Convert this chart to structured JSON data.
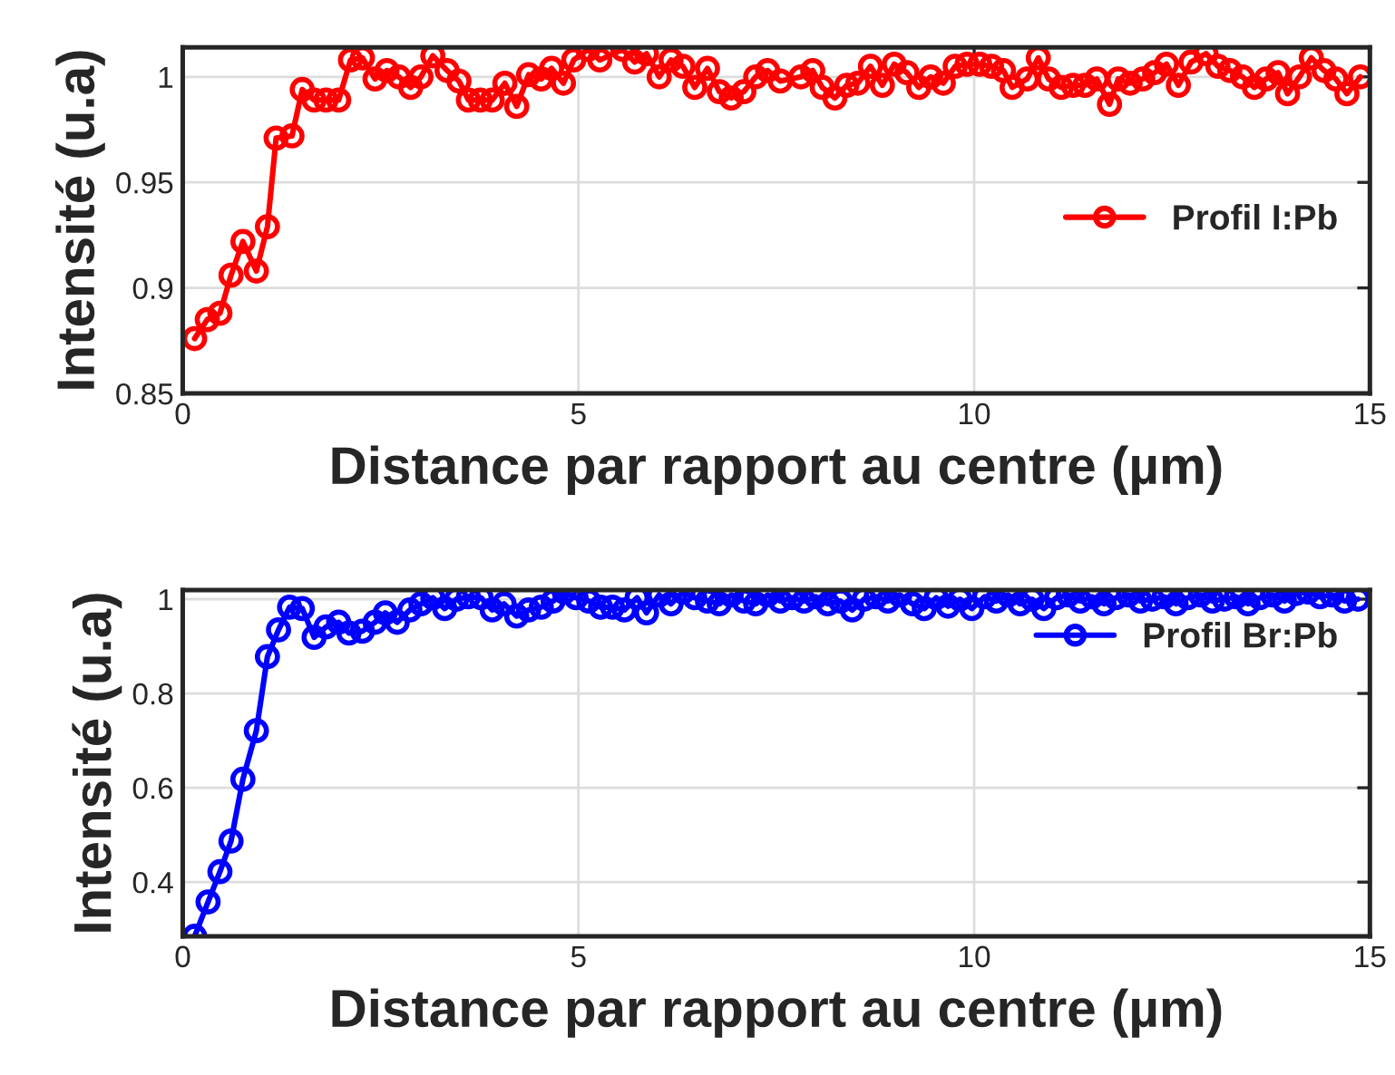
{
  "chart_data": [
    {
      "type": "line",
      "xlabel": "Distance par rapport au centre (µm)",
      "ylabel": "Intensité (u.a)",
      "xlim": [
        0,
        15
      ],
      "xticks": [
        0,
        5,
        10,
        15
      ],
      "ylim": [
        0.85,
        1.014
      ],
      "yticks": [
        0.85,
        0.9,
        0.95,
        1
      ],
      "grid": true,
      "legend": "right",
      "marker": "circle",
      "line_style": "solid",
      "series": [
        {
          "name": "Profil I:Pb",
          "color": "#ff0000",
          "x": [
            0.15,
            0.31,
            0.47,
            0.61,
            0.76,
            0.93,
            1.07,
            1.18,
            1.38,
            1.51,
            1.66,
            1.81,
            1.97,
            2.12,
            2.27,
            2.43,
            2.58,
            2.73,
            2.88,
            3.01,
            3.16,
            3.34,
            3.49,
            3.61,
            3.76,
            3.91,
            4.07,
            4.22,
            4.37,
            4.53,
            4.66,
            4.81,
            4.94,
            5.12,
            5.27,
            5.56,
            5.71,
            5.86,
            6.02,
            6.17,
            6.32,
            6.47,
            6.63,
            6.78,
            6.93,
            7.09,
            7.24,
            7.39,
            7.55,
            7.81,
            7.96,
            8.08,
            8.24,
            8.39,
            8.53,
            8.69,
            8.84,
            8.99,
            9.15,
            9.3,
            9.45,
            9.61,
            9.76,
            9.91,
            10.07,
            10.22,
            10.37,
            10.48,
            10.67,
            10.81,
            10.94,
            11.1,
            11.25,
            11.4,
            11.55,
            11.71,
            11.82,
            11.97,
            12.13,
            12.28,
            12.43,
            12.58,
            12.74,
            12.93,
            13.08,
            13.23,
            13.39,
            13.54,
            13.69,
            13.84,
            13.96,
            14.11,
            14.26,
            14.42,
            14.57,
            14.71,
            14.88
          ],
          "values": [
            0.876,
            0.885,
            0.888,
            0.906,
            0.922,
            0.908,
            0.929,
            0.971,
            0.972,
            0.994,
            0.989,
            0.989,
            0.989,
            1.008,
            1.009,
            0.999,
            1.003,
            1.0,
            0.995,
            1.0,
            1.01,
            1.003,
            0.998,
            0.989,
            0.989,
            0.989,
            0.997,
            0.986,
            1.001,
            0.999,
            1.004,
            0.997,
            1.008,
            1.013,
            1.008,
            1.013,
            1.007,
            1.011,
            1.0,
            1.008,
            1.005,
            0.995,
            1.004,
            0.993,
            0.99,
            0.993,
            1.0,
            1.003,
            0.998,
            1.0,
            1.003,
            0.995,
            0.99,
            0.996,
            0.997,
            1.005,
            0.996,
            1.006,
            1.002,
            0.995,
            1.0,
            0.997,
            1.005,
            1.006,
            1.006,
            1.005,
            1.003,
            0.995,
            0.999,
            1.009,
            0.999,
            0.995,
            0.996,
            0.996,
            0.999,
            0.987,
            0.999,
            0.997,
            0.999,
            1.002,
            1.006,
            0.996,
            1.007,
            1.011,
            1.005,
            1.003,
            1.0,
            0.995,
            0.999,
            1.002,
            0.992,
            1.0,
            1.009,
            1.003,
            0.999,
            0.992,
            1.0
          ]
        }
      ]
    },
    {
      "type": "line",
      "xlabel": "Distance par rapport au centre (µm)",
      "ylabel": "Intensité (u.a)",
      "xlim": [
        0,
        15
      ],
      "xticks": [
        0,
        5,
        10,
        15
      ],
      "ylim": [
        0.285,
        1.019
      ],
      "yticks": [
        0.4,
        0.6,
        0.8,
        1
      ],
      "grid": true,
      "legend": "top right",
      "marker": "circle",
      "line_style": "solid",
      "series": [
        {
          "name": "Profil Br:Pb",
          "color": "#0000ff",
          "x": [
            0.15,
            0.32,
            0.47,
            0.61,
            0.76,
            0.93,
            1.07,
            1.21,
            1.35,
            1.51,
            1.66,
            1.81,
            1.97,
            2.1,
            2.27,
            2.43,
            2.56,
            2.71,
            2.87,
            3.01,
            3.16,
            3.31,
            3.46,
            3.61,
            3.77,
            3.91,
            4.06,
            4.22,
            4.37,
            4.53,
            4.68,
            4.82,
            4.97,
            5.13,
            5.28,
            5.43,
            5.58,
            5.74,
            5.86,
            6.02,
            6.17,
            6.32,
            6.47,
            6.63,
            6.78,
            6.93,
            7.09,
            7.24,
            7.39,
            7.55,
            7.7,
            7.85,
            8.0,
            8.15,
            8.31,
            8.46,
            8.61,
            8.76,
            8.91,
            9.06,
            9.22,
            9.37,
            9.52,
            9.67,
            9.82,
            9.97,
            10.13,
            10.28,
            10.43,
            10.58,
            10.73,
            10.88,
            11.04,
            11.19,
            11.34,
            11.49,
            11.64,
            11.79,
            11.95,
            12.1,
            12.25,
            12.4,
            12.55,
            12.7,
            12.86,
            13.01,
            13.16,
            13.31,
            13.46,
            13.61,
            13.77,
            13.92,
            14.07,
            14.22,
            14.37,
            14.52,
            14.68,
            14.85
          ],
          "values": [
            0.285,
            0.358,
            0.422,
            0.487,
            0.618,
            0.721,
            0.878,
            0.935,
            0.983,
            0.98,
            0.919,
            0.941,
            0.951,
            0.928,
            0.932,
            0.951,
            0.971,
            0.951,
            0.977,
            0.99,
            1.003,
            0.98,
            1.0,
            1.005,
            1.003,
            0.977,
            0.99,
            0.964,
            0.977,
            0.983,
            0.996,
            1.015,
            1.003,
            0.996,
            0.983,
            0.983,
            0.977,
            1.003,
            0.971,
            1.009,
            0.99,
            1.015,
            1.003,
            0.996,
            0.99,
            1.009,
            0.996,
            0.99,
            1.009,
            0.996,
            1.003,
            0.996,
            1.005,
            0.99,
            0.996,
            0.977,
            1.0,
            1.005,
            0.996,
            1.009,
            0.99,
            0.98,
            1.003,
            0.985,
            1.0,
            0.98,
            1.005,
            0.996,
            1.009,
            0.99,
            1.0,
            0.98,
            1.003,
            1.009,
            0.996,
            1.005,
            0.99,
            1.003,
            1.009,
            0.996,
            1.0,
            1.005,
            0.99,
            1.003,
            1.009,
            0.996,
            1.0,
            1.005,
            0.99,
            1.003,
            1.009,
            0.996,
            1.012,
            1.015,
            1.005,
            1.009,
            0.996,
            1.0
          ]
        }
      ]
    }
  ]
}
